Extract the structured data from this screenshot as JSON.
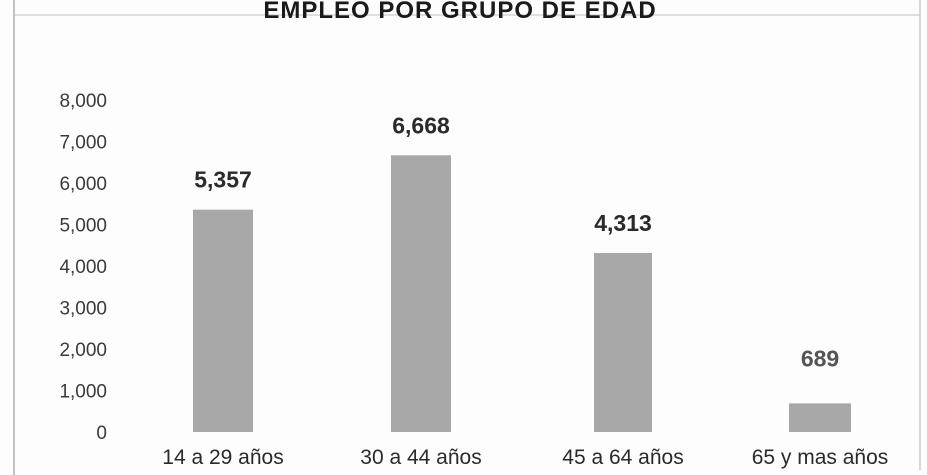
{
  "chart_data": {
    "type": "bar",
    "title": "EMPLEO POR GRUPO DE EDAD",
    "categories": [
      "14 a 29 años",
      "30 a 44 años",
      "45 a 64 años",
      "65 y mas años"
    ],
    "values": [
      5357,
      6668,
      4313,
      689
    ],
    "value_labels": [
      "5,357",
      "6,668",
      "4,313",
      "689"
    ],
    "ylim": [
      0,
      8000
    ],
    "yticks": [
      0,
      1000,
      2000,
      3000,
      4000,
      5000,
      6000,
      7000,
      8000
    ],
    "ytick_labels": [
      "0",
      "1,000",
      "2,000",
      "3,000",
      "4,000",
      "5,000",
      "6,000",
      "7,000",
      "8,000"
    ],
    "xlabel": "",
    "ylabel": "",
    "grid": false,
    "legend": "none",
    "bar_color": "#a8a8a8"
  }
}
